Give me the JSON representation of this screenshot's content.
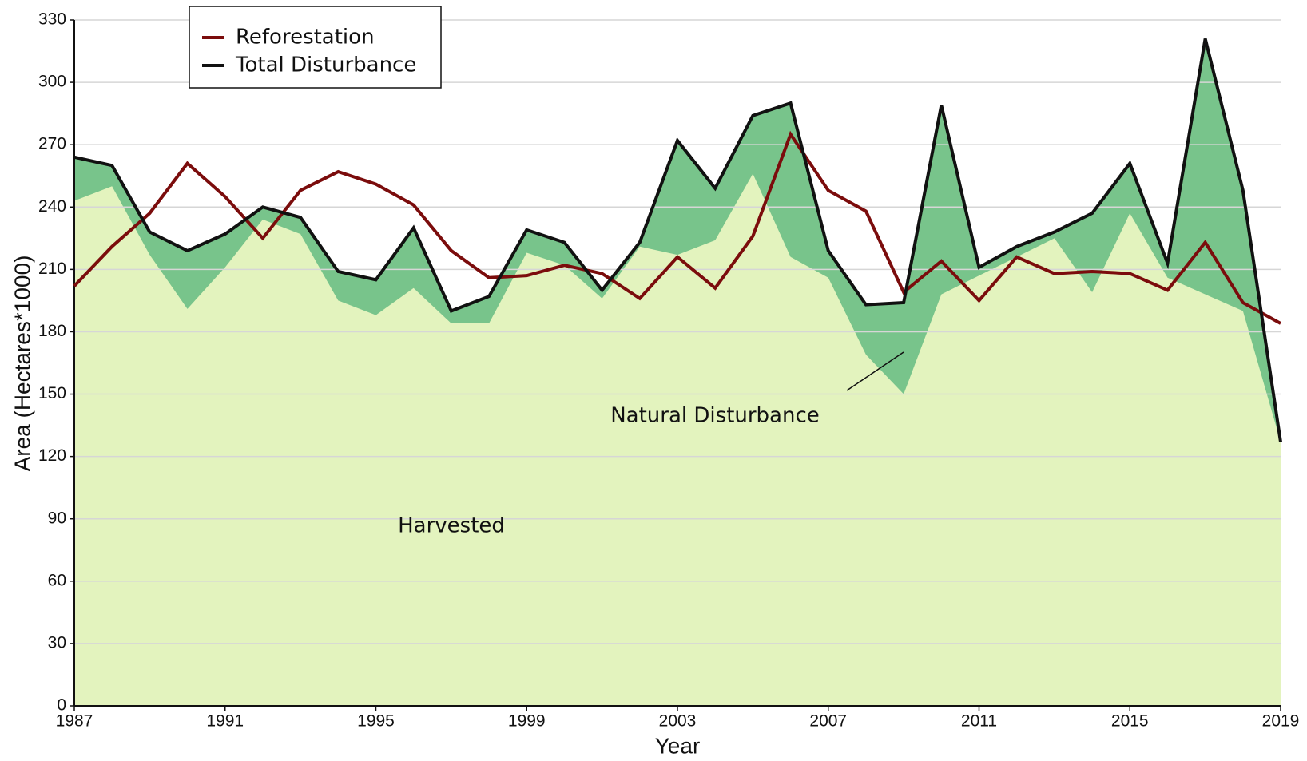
{
  "chart_data": {
    "type": "line",
    "xlabel": "Year",
    "ylabel": "Area (Hectares*1000)",
    "x": [
      1987,
      1988,
      1989,
      1990,
      1991,
      1992,
      1993,
      1994,
      1995,
      1996,
      1997,
      1998,
      1999,
      2000,
      2001,
      2002,
      2003,
      2004,
      2005,
      2006,
      2007,
      2008,
      2009,
      2010,
      2011,
      2012,
      2013,
      2014,
      2015,
      2016,
      2017,
      2018,
      2019
    ],
    "series": [
      {
        "name": "Reforestation",
        "color": "#7b0c0c",
        "values": [
          202,
          221,
          237,
          261,
          245,
          225,
          248,
          257,
          251,
          241,
          219,
          206,
          207,
          212,
          208,
          196,
          216,
          201,
          226,
          275,
          248,
          238,
          199,
          214,
          195,
          216,
          208,
          209,
          208,
          200,
          223,
          194,
          184
        ]
      },
      {
        "name": "Total Disturbance",
        "color": "#111111",
        "values": [
          264,
          260,
          228,
          219,
          227,
          240,
          235,
          209,
          205,
          230,
          190,
          197,
          229,
          223,
          200,
          223,
          272,
          249,
          284,
          290,
          219,
          193,
          194,
          289,
          211,
          221,
          228,
          237,
          261,
          213,
          321,
          248,
          127
        ]
      }
    ],
    "areas": [
      {
        "name": "Harvested",
        "color": "#e3f3be",
        "values": [
          243,
          250,
          217,
          191,
          211,
          234,
          227,
          195,
          188,
          201,
          184,
          184,
          218,
          212,
          196,
          221,
          217,
          224,
          256,
          216,
          206,
          169,
          150,
          198,
          207,
          216,
          225,
          199,
          237,
          206,
          198,
          190,
          127
        ]
      }
    ],
    "disturbance_fill": "#78c48b",
    "annotations": [
      "Natural Disturbance"
    ],
    "xlim": [
      1987,
      2019
    ],
    "xticks": [
      1987,
      1991,
      1995,
      1999,
      2003,
      2007,
      2011,
      2015,
      2019
    ],
    "ylim": [
      0,
      330
    ],
    "yticks": [
      0,
      30,
      60,
      90,
      120,
      150,
      180,
      210,
      240,
      270,
      300,
      330
    ],
    "grid": true,
    "legend": "upper left"
  }
}
